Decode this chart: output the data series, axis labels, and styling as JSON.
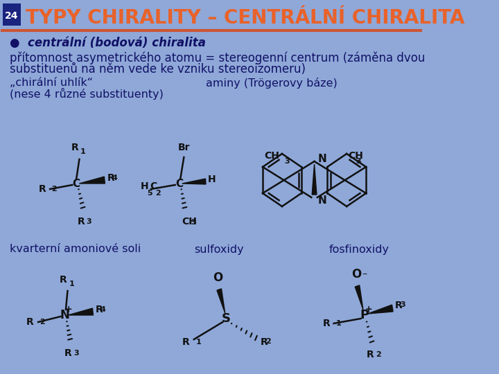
{
  "bg_color": "#8fa8d8",
  "header_bg": "#1a237e",
  "header_text_color": "#e8622a",
  "header_number": "24",
  "header_title": "TYPY CHIRALITY – CENTRÁLNÍ CHIRALITA",
  "separator_color": "#cc5533",
  "bullet_text": "●  centrální (bodová) chiralita",
  "body_text1": "přítomnost asymetrického atomu = stereogenní centrum (záměna dvou",
  "body_text2": "substituenů na něm vede ke vzniku stereoizomeru)",
  "label1": "„chirální uhlík“",
  "label1b": "(nese 4 různé substituenty)",
  "label2": "aminy (Trögerovy báze)",
  "label3": "kvarterní amoniové soli",
  "label4": "sulfoxidy",
  "label5": "fosfinoxidy",
  "text_color": "#111166",
  "struct_color": "#111111",
  "title_fontsize": 20,
  "body_fontsize": 12,
  "label_fontsize": 11.5
}
